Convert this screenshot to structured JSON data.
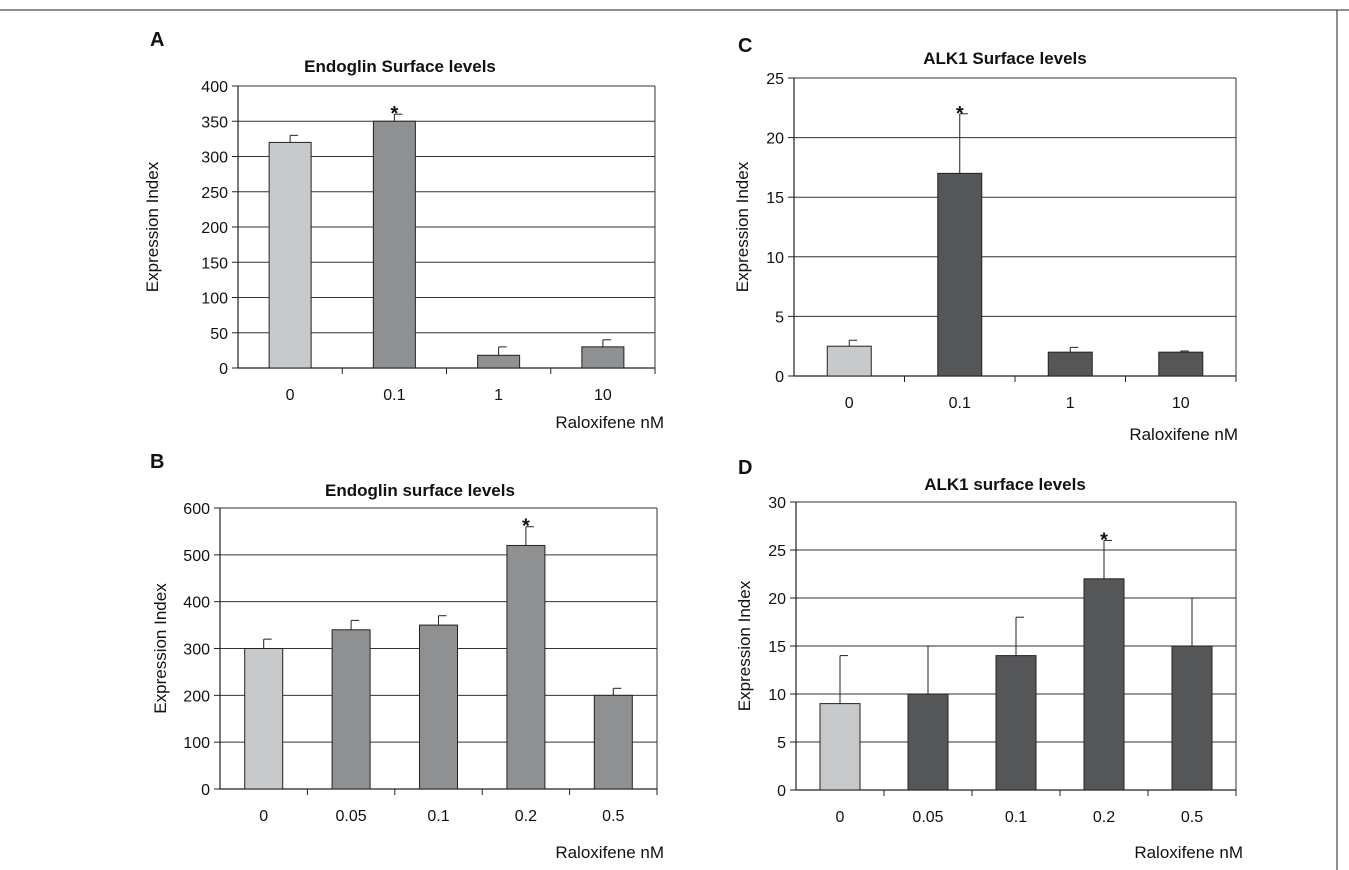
{
  "chart_data": [
    {
      "type": "bar",
      "panel_label": "A",
      "title": "Endoglin Surface levels",
      "ylabel": "Expression Index",
      "xlabel": "Raloxifene nM",
      "ylim": [
        0,
        400
      ],
      "yticks": [
        0,
        50,
        100,
        150,
        200,
        250,
        300,
        350,
        400
      ],
      "categories": [
        "0",
        "0.1",
        "1",
        "10"
      ],
      "values": [
        320,
        350,
        18,
        30
      ],
      "errors": [
        10,
        10,
        12,
        10
      ],
      "significant": [
        "",
        "*",
        "",
        ""
      ],
      "bar_colors": [
        "#c8c9cb",
        "#8f9092",
        "#8f9092",
        "#8f9092"
      ],
      "grid": true
    },
    {
      "type": "bar",
      "panel_label": "B",
      "title": "Endoglin surface levels",
      "ylabel": "Expression Index",
      "xlabel": "Raloxifene nM",
      "ylim": [
        0,
        600
      ],
      "yticks": [
        0,
        100,
        200,
        300,
        400,
        500,
        600
      ],
      "categories": [
        "0",
        "0.05",
        "0.1",
        "0.2",
        "0.5"
      ],
      "values": [
        300,
        340,
        350,
        520,
        200
      ],
      "errors": [
        20,
        20,
        20,
        40,
        15
      ],
      "significant": [
        "",
        "",
        "",
        "*",
        ""
      ],
      "bar_colors": [
        "#c8c9cb",
        "#8f9092",
        "#8f9092",
        "#8f9092",
        "#8f9092"
      ],
      "grid": true
    },
    {
      "type": "bar",
      "panel_label": "C",
      "title": "ALK1 Surface levels",
      "ylabel": "Expression Index",
      "xlabel": "Raloxifene nM",
      "ylim": [
        0,
        25
      ],
      "yticks": [
        0,
        5,
        10,
        15,
        20,
        25
      ],
      "categories": [
        "0",
        "0.1",
        "1",
        "10"
      ],
      "values": [
        2.5,
        17,
        2,
        2
      ],
      "errors": [
        0.5,
        5,
        0.4,
        0.1
      ],
      "significant": [
        "",
        "*",
        "",
        ""
      ],
      "bar_colors": [
        "#c8c9cb",
        "#555658",
        "#555658",
        "#555658"
      ],
      "grid": true
    },
    {
      "type": "bar",
      "panel_label": "D",
      "title": "ALK1 surface levels",
      "ylabel": "Expression  Index",
      "xlabel": "Raloxifene nM",
      "ylim": [
        0,
        30
      ],
      "yticks": [
        0,
        5,
        10,
        15,
        20,
        25,
        30
      ],
      "categories": [
        "0",
        "0.05",
        "0.1",
        "0.2",
        "0.5"
      ],
      "values": [
        9,
        10,
        14,
        22,
        15
      ],
      "errors": [
        5,
        5,
        4,
        4,
        5
      ],
      "significant": [
        "",
        "",
        "",
        "*",
        ""
      ],
      "bar_colors": [
        "#c8c9cb",
        "#555658",
        "#555658",
        "#555658",
        "#555658"
      ],
      "grid": true
    }
  ]
}
